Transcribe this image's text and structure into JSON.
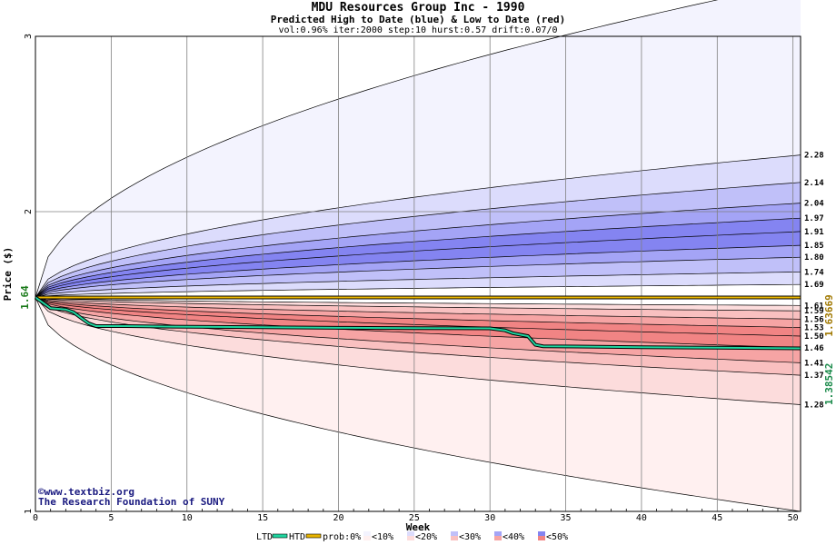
{
  "header": {
    "title": "MDU Resources Group Inc - 1990",
    "subtitle": "Predicted High to Date (blue) &  Low to Date (red)",
    "params": "vol:0.96% iter:2000 step:10 hurst:0.57 drift:0.07/0"
  },
  "watermark": {
    "line1": "©www.textbiz.org",
    "line2": "The Research Foundation of SUNY"
  },
  "colors": {
    "blue_bands": [
      "#f3f3fe",
      "#dcdcfc",
      "#c0c0f9",
      "#a4a4f6",
      "#8484f1"
    ],
    "red_bands": [
      "#fff0f0",
      "#fcdcdc",
      "#f9c0c0",
      "#f6a4a4",
      "#f18484"
    ],
    "ltd_line": "#1fd6a0",
    "htd_line": "#e8b400",
    "current_label": "#1a7a1a",
    "high_label": "#a07800",
    "low_label": "#1a8a4a",
    "grid": "#808080"
  },
  "chart_data": {
    "type": "area",
    "xlabel": "Week",
    "ylabel": "Price ($)",
    "xlim": [
      0,
      50.5
    ],
    "ylim": [
      1,
      3
    ],
    "y_scale": "log",
    "x_ticks": [
      0,
      5,
      10,
      15,
      20,
      25,
      30,
      35,
      40,
      45,
      50
    ],
    "y_ticks": [
      1,
      2,
      3
    ],
    "current_price": 1.64,
    "current_price_label": "1.64",
    "high_value_label": "1.63669",
    "low_value_label": "1.38542",
    "high_bands": {
      "end_values": [
        1.69,
        1.74,
        1.8,
        1.85,
        1.91,
        1.97,
        2.04,
        2.14,
        2.28
      ],
      "outer_upper_end": 3.4
    },
    "low_bands": {
      "end_values": [
        1.61,
        1.59,
        1.56,
        1.53,
        1.5,
        1.46,
        1.41,
        1.37,
        1.28
      ],
      "outer_lower_end": 1.0
    },
    "right_labels": [
      "2.28",
      "2.14",
      "2.04",
      "1.97",
      "1.91",
      "1.85",
      "1.80",
      "1.74",
      "1.69",
      "1.61",
      "1.59",
      "1.56",
      "1.53",
      "1.50",
      "1.46",
      "1.41",
      "1.37",
      "1.28"
    ],
    "high_to_date": {
      "name": "HTD",
      "points": [
        [
          0,
          1.64
        ],
        [
          50.5,
          1.64
        ]
      ]
    },
    "low_to_date": {
      "name": "LTD",
      "points": [
        [
          0,
          1.64
        ],
        [
          0.5,
          1.62
        ],
        [
          1,
          1.6
        ],
        [
          2,
          1.595
        ],
        [
          2.5,
          1.585
        ],
        [
          3,
          1.565
        ],
        [
          3.5,
          1.545
        ],
        [
          4,
          1.535
        ],
        [
          6,
          1.535
        ],
        [
          9,
          1.533
        ],
        [
          15,
          1.531
        ],
        [
          20,
          1.529
        ],
        [
          25,
          1.528
        ],
        [
          30,
          1.527
        ],
        [
          31,
          1.52
        ],
        [
          31.5,
          1.51
        ],
        [
          32.5,
          1.5
        ],
        [
          33,
          1.47
        ],
        [
          33.5,
          1.465
        ],
        [
          40,
          1.462
        ],
        [
          45,
          1.46
        ],
        [
          50.5,
          1.458
        ]
      ]
    },
    "legend": {
      "ltd": "LTD",
      "htd": "HTD",
      "prob": "prob:0%",
      "bins": [
        "<10%",
        "<20%",
        "<30%",
        "<40%",
        "<50%"
      ]
    }
  }
}
